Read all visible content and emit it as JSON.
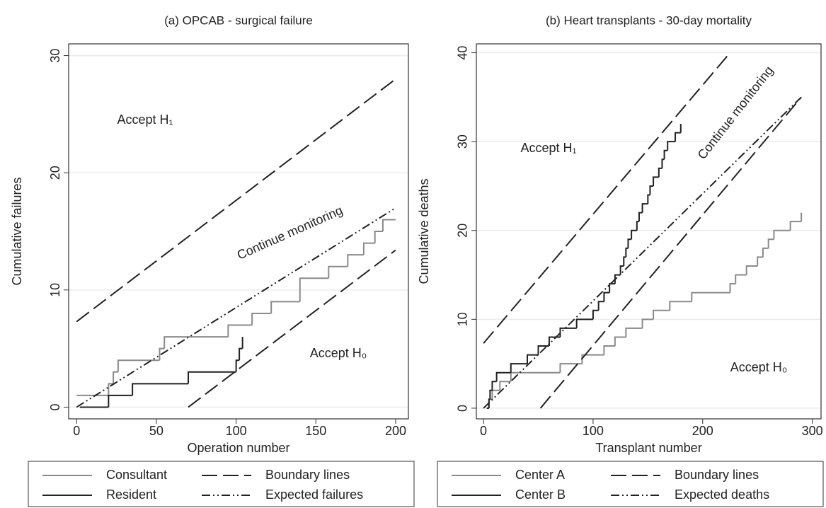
{
  "chart_data": [
    {
      "type": "line",
      "title": "(a)  OPCAB - surgical failure",
      "x_label": "Operation number",
      "y_label": "Cumulative failures",
      "xlim": [
        -5,
        208
      ],
      "ylim": [
        -1,
        31
      ],
      "xticks": [
        0,
        50,
        100,
        150,
        200
      ],
      "yticks": [
        0,
        10,
        20,
        30
      ],
      "grid": true,
      "annotations": [
        "Accept H₁",
        "Continue monitoring",
        "Accept H₀"
      ],
      "series": [
        {
          "name": "Consultant",
          "color": "#8a8a8a",
          "style": "step",
          "x": [
            0,
            20,
            23,
            26,
            52,
            55,
            95,
            110,
            122,
            140,
            158,
            170,
            180,
            187,
            192,
            200
          ],
          "values": [
            1,
            2,
            3,
            4,
            5,
            6,
            7,
            8,
            9,
            11,
            12,
            13,
            14,
            15,
            16,
            16
          ]
        },
        {
          "name": "Resident",
          "color": "#222222",
          "style": "step",
          "x": [
            2,
            20,
            35,
            70,
            100,
            102,
            104
          ],
          "values": [
            0,
            1,
            2,
            3,
            4,
            5,
            6
          ]
        },
        {
          "name": "Boundary lines",
          "color": "#222222",
          "style": "dashed",
          "x": [
            0,
            200,
            null,
            70,
            200
          ],
          "values": [
            7.3,
            28,
            null,
            0,
            13.4
          ]
        },
        {
          "name": "Expected failures",
          "color": "#222222",
          "style": "dashdotdot",
          "x": [
            0,
            200
          ],
          "values": [
            0,
            17
          ]
        }
      ]
    },
    {
      "type": "line",
      "title": "(b) Heart transplants - 30-day mortality",
      "x_label": "Transplant number",
      "y_label": "Cumulative deaths",
      "xlim": [
        -6.5,
        308
      ],
      "ylim": [
        -1.2,
        41
      ],
      "xticks": [
        0,
        100,
        200,
        300
      ],
      "yticks": [
        0,
        10,
        20,
        30,
        40
      ],
      "grid": true,
      "annotations": [
        "Accept H₁",
        "Continue monitoring",
        "Accept H₀"
      ],
      "series": [
        {
          "name": "Center A",
          "color": "#8a8a8a",
          "style": "step",
          "x": [
            3,
            5,
            8,
            15,
            25,
            70,
            90,
            110,
            120,
            130,
            145,
            155,
            170,
            190,
            225,
            230,
            240,
            250,
            255,
            260,
            265,
            280,
            290
          ],
          "values": [
            0,
            1,
            2,
            3,
            4,
            5,
            6,
            7,
            8,
            9,
            10,
            11,
            12,
            13,
            14,
            15,
            16,
            17,
            18,
            19,
            20,
            21,
            22
          ]
        },
        {
          "name": "Center B",
          "color": "#222222",
          "style": "step",
          "x": [
            3,
            5,
            6,
            8,
            12,
            25,
            40,
            50,
            60,
            70,
            85,
            100,
            105,
            110,
            115,
            120,
            125,
            128,
            130,
            132,
            135,
            140,
            142,
            145,
            150,
            152,
            155,
            160,
            163,
            165,
            168,
            175,
            180
          ],
          "values": [
            0,
            1,
            2,
            3,
            4,
            5,
            6,
            7,
            8,
            9,
            10,
            11,
            12,
            13,
            14,
            15,
            16,
            17,
            18,
            19,
            20,
            21,
            22,
            23,
            24,
            25,
            26,
            27,
            28,
            29,
            30,
            31,
            32
          ]
        },
        {
          "name": "Boundary lines",
          "color": "#222222",
          "style": "dashed",
          "x": [
            0,
            225,
            null,
            52,
            290
          ],
          "values": [
            7.3,
            40,
            null,
            0,
            35
          ]
        },
        {
          "name": "Expected deaths",
          "color": "#222222",
          "style": "dashdotdot",
          "x": [
            0,
            290
          ],
          "values": [
            0,
            35
          ]
        }
      ]
    }
  ]
}
